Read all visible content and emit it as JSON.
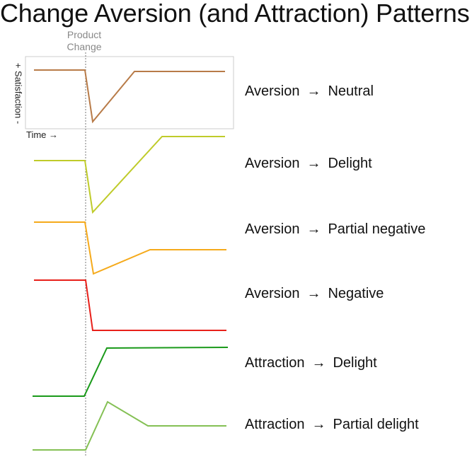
{
  "title": "Change Aversion (and Attraction) Patterns",
  "marker": {
    "line1": "Product",
    "line2": "Change"
  },
  "axes": {
    "y_label": "+ Satisfaction -",
    "x_label": "Time →"
  },
  "arrow_glyph": "→",
  "patterns": [
    {
      "from": "Aversion",
      "to": "Neutral",
      "color": "#b87b48"
    },
    {
      "from": "Aversion",
      "to": "Delight",
      "color": "#bfcb2a"
    },
    {
      "from": "Aversion",
      "to": "Partial negative",
      "color": "#f5aa1b"
    },
    {
      "from": "Aversion",
      "to": "Negative",
      "color": "#e8201a"
    },
    {
      "from": "Attraction",
      "to": "Delight",
      "color": "#1a9a1a"
    },
    {
      "from": "Attraction",
      "to": "Partial delight",
      "color": "#84c054"
    }
  ]
}
